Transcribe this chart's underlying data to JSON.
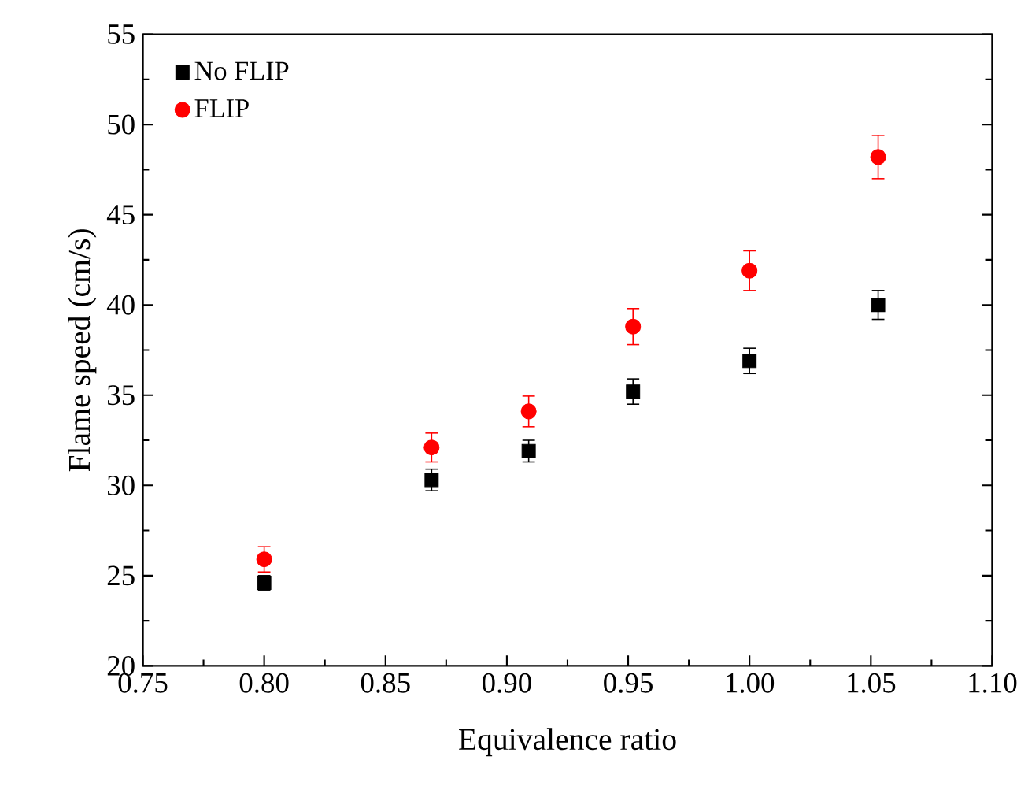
{
  "chart_data": {
    "type": "scatter",
    "xlabel": "Equivalence ratio",
    "ylabel": "Flame speed (cm/s)",
    "xlim": [
      0.75,
      1.1
    ],
    "xticks": [
      {
        "value": 0.75,
        "label": "0.75"
      },
      {
        "value": 0.8,
        "label": "0.80"
      },
      {
        "value": 0.85,
        "label": "0.85"
      },
      {
        "value": 0.9,
        "label": "0.90"
      },
      {
        "value": 0.95,
        "label": "0.95"
      },
      {
        "value": 1.0,
        "label": "1.00"
      },
      {
        "value": 1.05,
        "label": "1.05"
      },
      {
        "value": 1.1,
        "label": "1.10"
      }
    ],
    "ylim": [
      20,
      55
    ],
    "yticks": [
      20,
      25,
      30,
      35,
      40,
      45,
      50,
      55
    ],
    "grid": false,
    "legend": "top left",
    "series": [
      {
        "name": "No FLIP",
        "color": "#000000",
        "marker": "square",
        "x": [
          0.8,
          0.869,
          0.909,
          0.952,
          1.0,
          1.053
        ],
        "values": [
          24.6,
          30.3,
          31.9,
          35.2,
          36.9,
          40.0
        ],
        "errors": [
          0.4,
          0.6,
          0.6,
          0.7,
          0.7,
          0.8
        ]
      },
      {
        "name": "FLIP",
        "color": "#ff0000",
        "marker": "circle",
        "x": [
          0.8,
          0.869,
          0.909,
          0.952,
          1.0,
          1.053
        ],
        "values": [
          25.9,
          32.1,
          34.1,
          38.8,
          41.9,
          48.2
        ],
        "errors": [
          0.7,
          0.8,
          0.85,
          1.0,
          1.1,
          1.2
        ]
      }
    ]
  }
}
